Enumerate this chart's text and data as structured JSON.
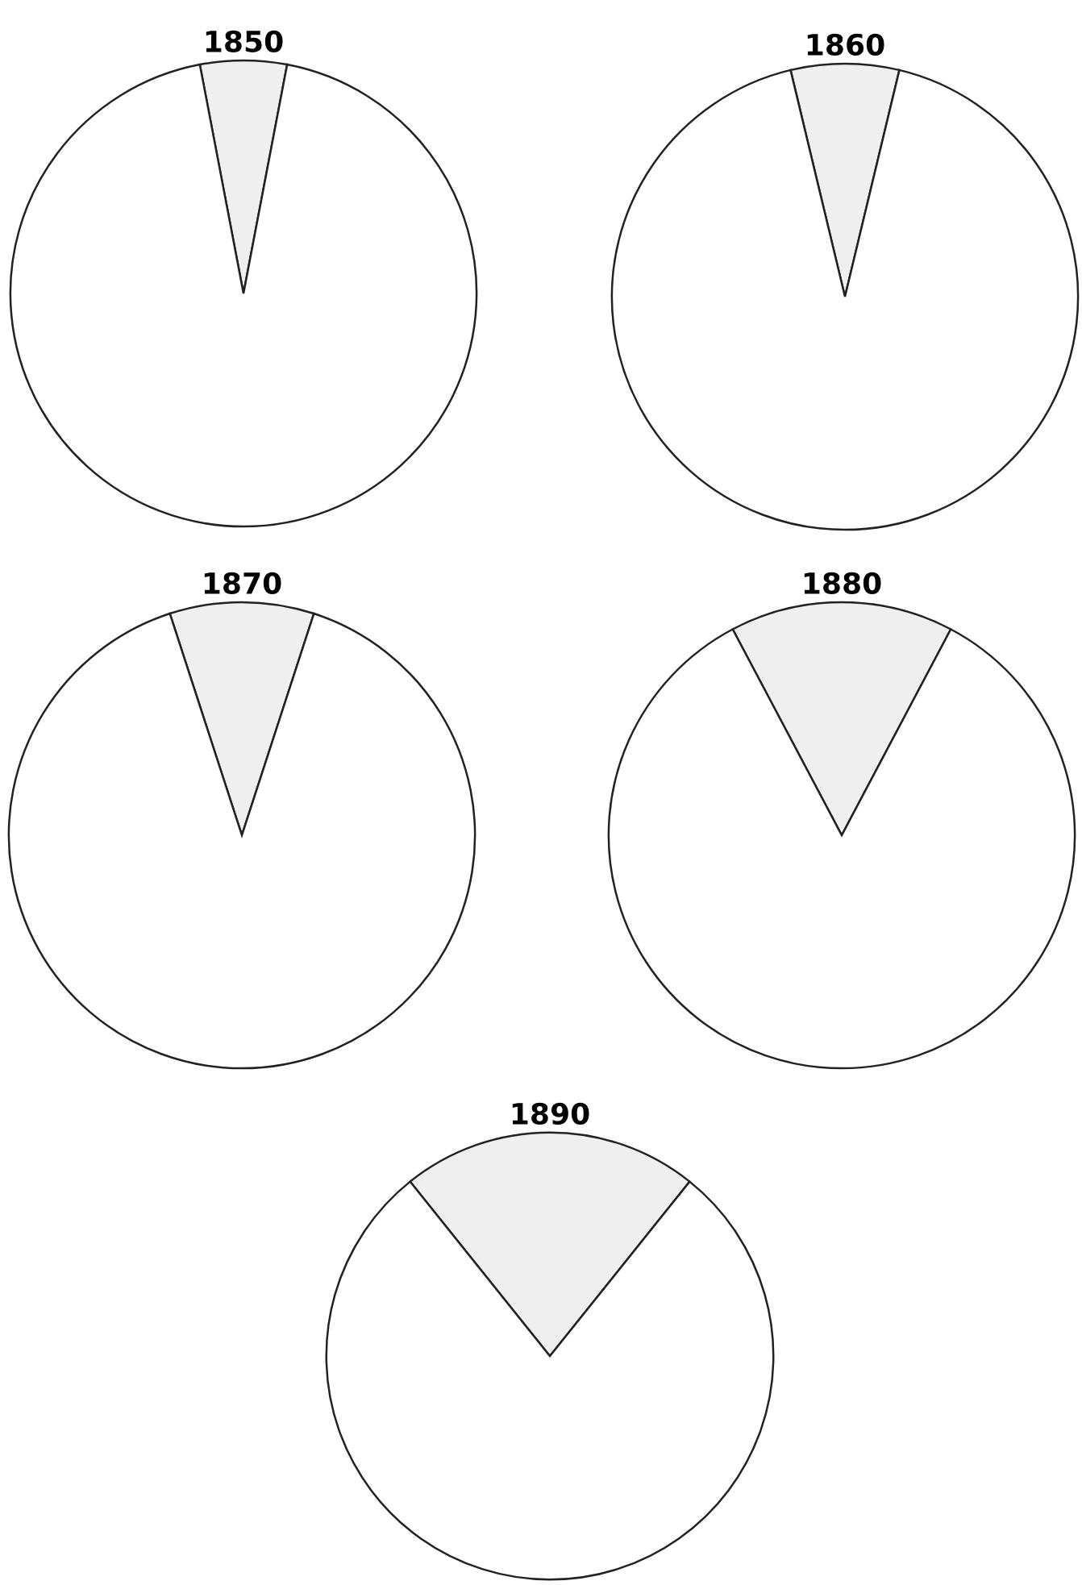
{
  "chart_data": [
    {
      "type": "pie",
      "title": "1850",
      "categories": [
        null,
        null
      ],
      "values": [
        6,
        94
      ],
      "colors": [
        "#efefef",
        "#ffffff"
      ]
    },
    {
      "type": "pie",
      "title": "1860",
      "categories": [
        null,
        null
      ],
      "values": [
        7.5,
        92.5
      ],
      "colors": [
        "#efefef",
        "#ffffff"
      ]
    },
    {
      "type": "pie",
      "title": "1870",
      "categories": [
        null,
        null
      ],
      "values": [
        10,
        90
      ],
      "colors": [
        "#efefef",
        "#ffffff"
      ]
    },
    {
      "type": "pie",
      "title": "1880",
      "categories": [
        null,
        null
      ],
      "values": [
        15.5,
        84.5
      ],
      "colors": [
        "#efefef",
        "#ffffff"
      ]
    },
    {
      "type": "pie",
      "title": "1890",
      "categories": [
        null,
        null
      ],
      "values": [
        21.5,
        78.5
      ],
      "colors": [
        "#efefef",
        "#ffffff"
      ]
    }
  ]
}
